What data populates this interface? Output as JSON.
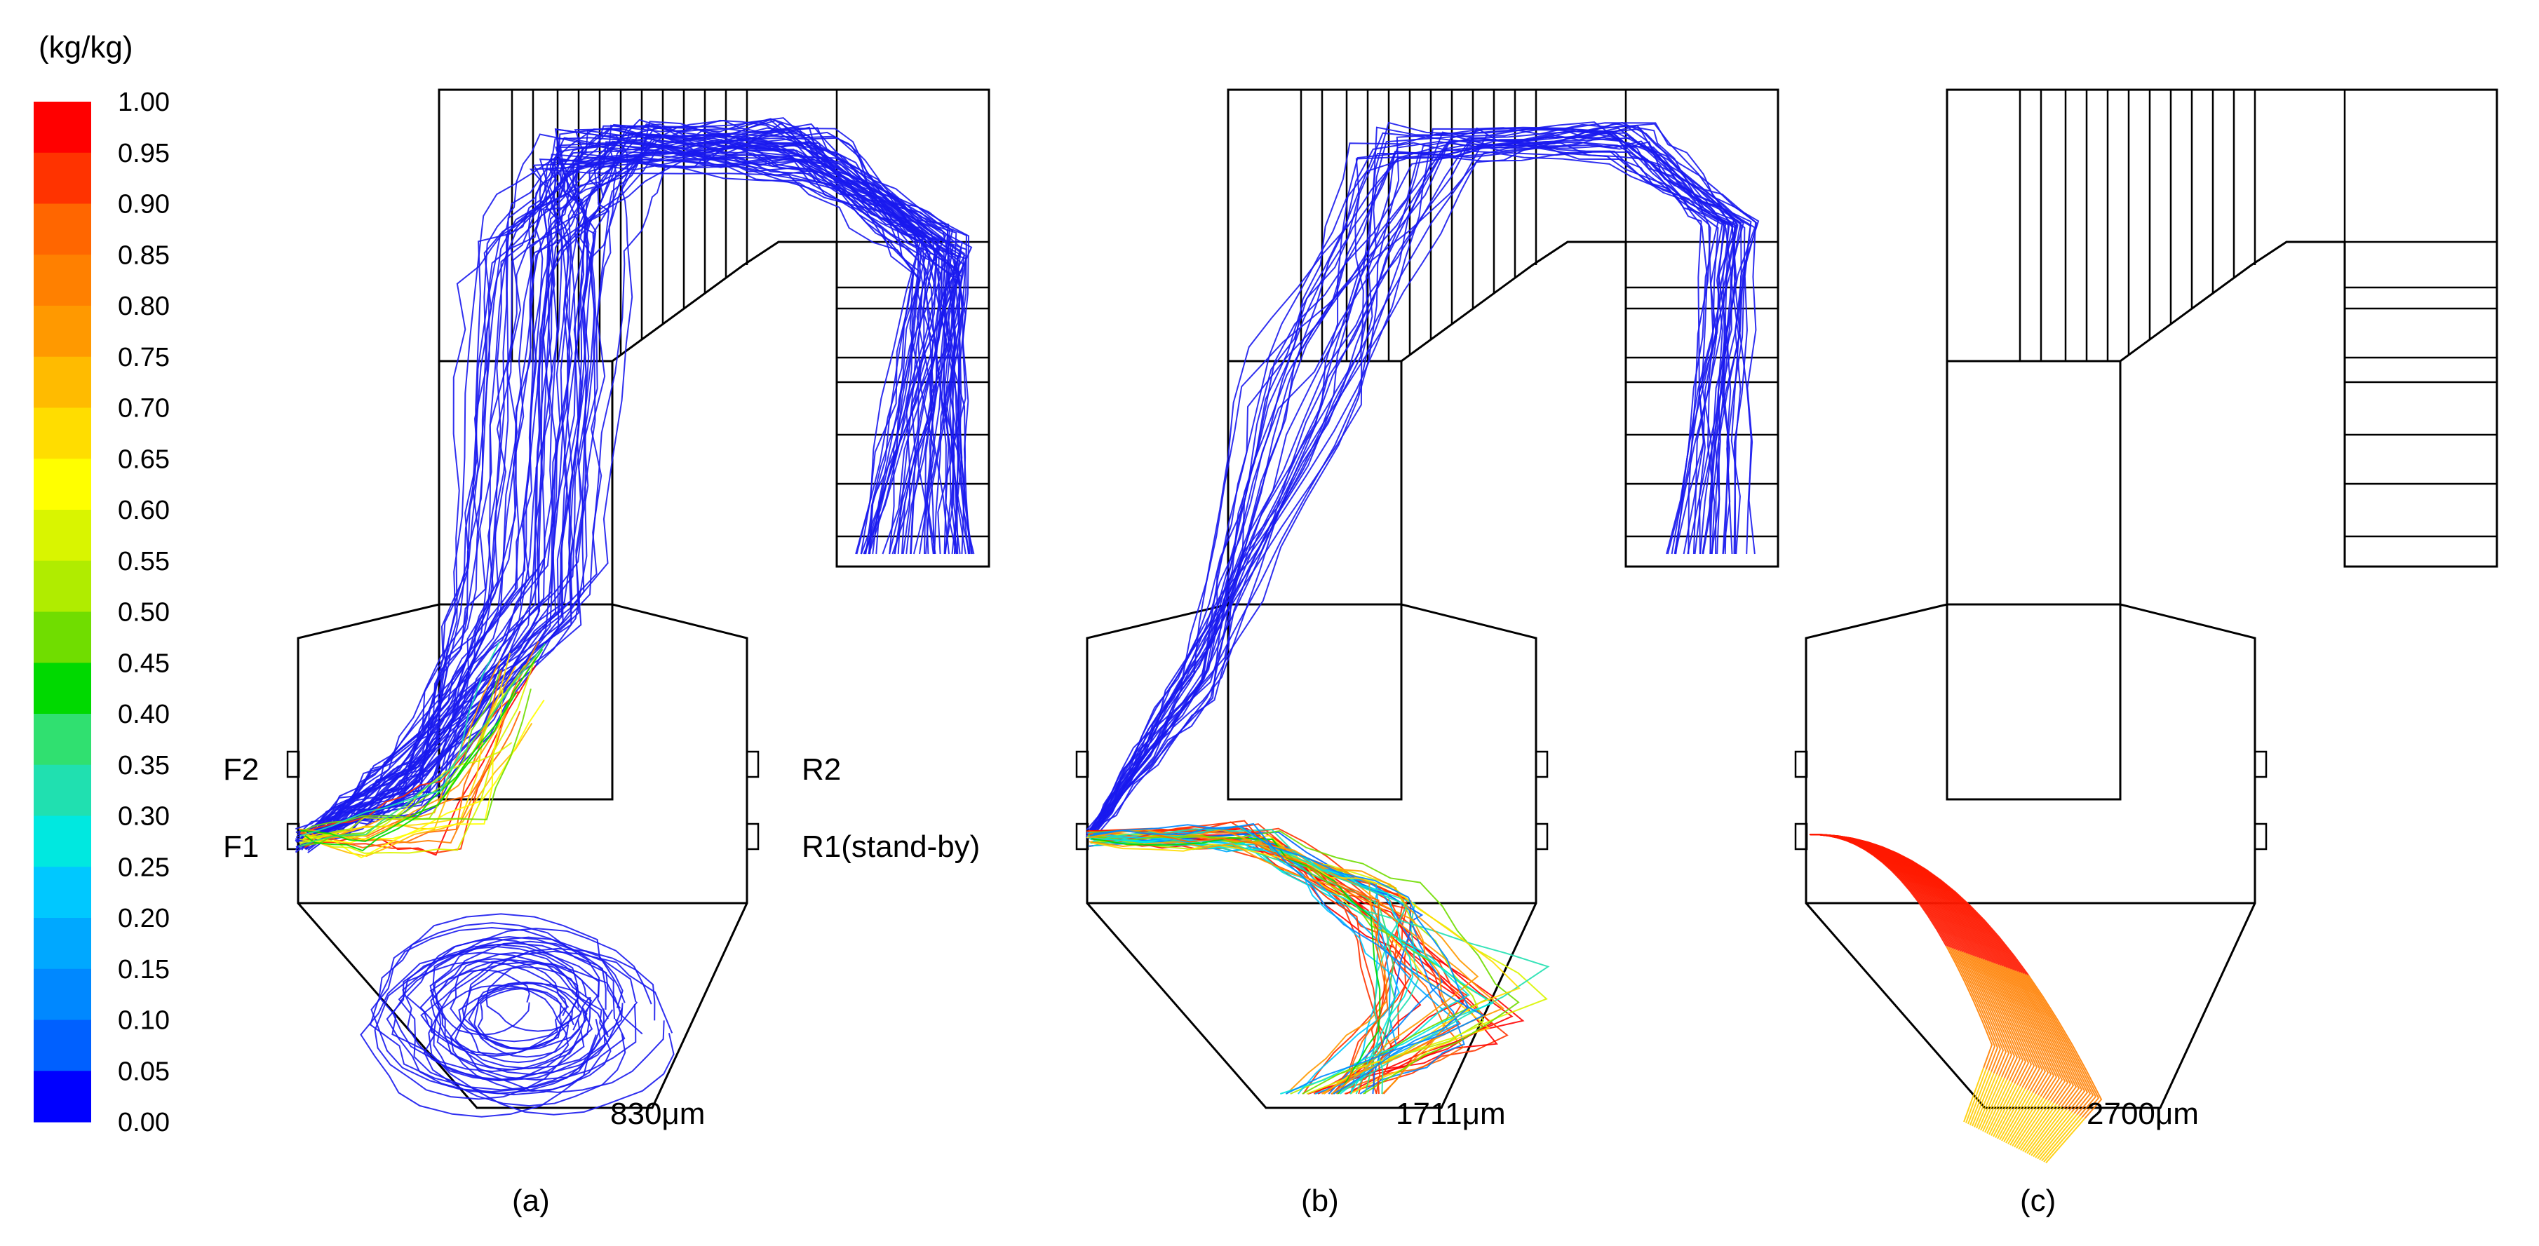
{
  "colorbar": {
    "unit_label": "(kg/kg)",
    "ticks": [
      "1.00",
      "0.95",
      "0.90",
      "0.85",
      "0.80",
      "0.75",
      "0.70",
      "0.65",
      "0.60",
      "0.55",
      "0.50",
      "0.45",
      "0.40",
      "0.35",
      "0.30",
      "0.25",
      "0.20",
      "0.15",
      "0.10",
      "0.05",
      "0.00"
    ],
    "colors": [
      "#ff0000",
      "#ff3300",
      "#ff6600",
      "#ff8000",
      "#ff9900",
      "#ffbb00",
      "#ffdd00",
      "#ffff00",
      "#d9f500",
      "#b0ec00",
      "#70dd00",
      "#00d900",
      "#30e070",
      "#20e0b0",
      "#00e8e0",
      "#00c8ff",
      "#00a8ff",
      "#0088ff",
      "#0060ff",
      "#0000ff"
    ]
  },
  "port_labels": {
    "f2": "F2",
    "f1": "F1",
    "r2": "R2",
    "r1": "R1(stand-by)"
  },
  "panels": [
    {
      "caption": "(a)",
      "size_label": "830μm"
    },
    {
      "caption": "(b)",
      "size_label": "1711μm"
    },
    {
      "caption": "(c)",
      "size_label": "2700μm"
    }
  ]
}
